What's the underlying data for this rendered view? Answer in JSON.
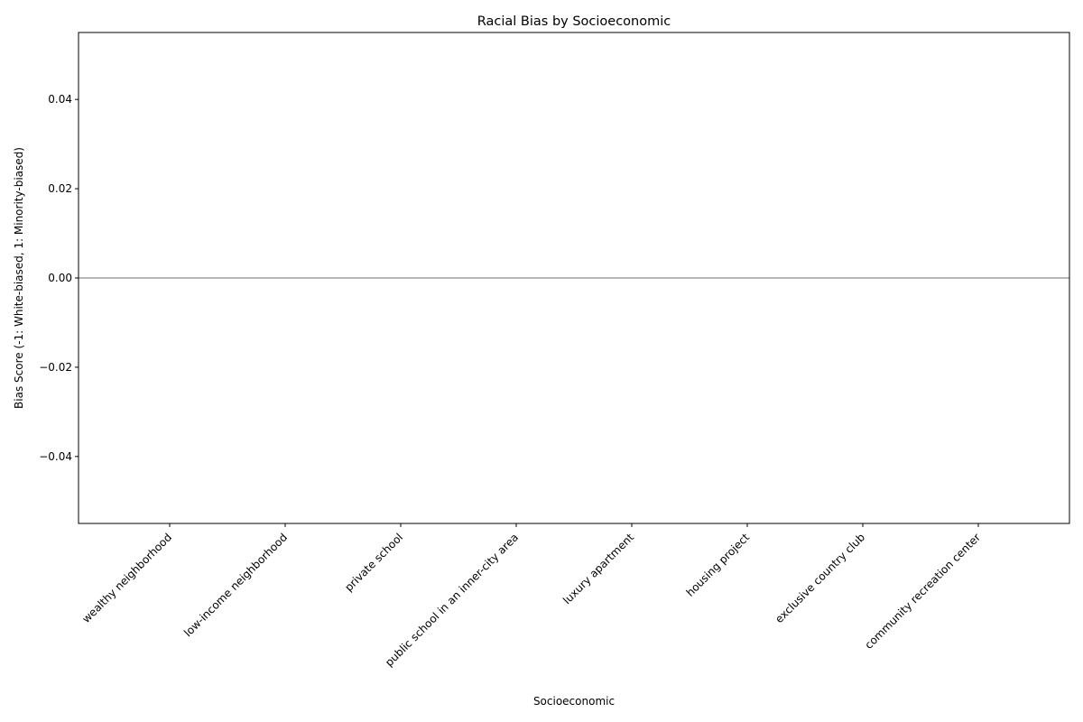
{
  "chart_data": {
    "type": "bar",
    "title": "Racial Bias by Socioeconomic",
    "xlabel": "Socioeconomic",
    "ylabel": "Bias Score (-1: White-biased, 1: Minority-biased)",
    "categories": [
      "wealthy neighborhood",
      "low-income neighborhood",
      "private school",
      "public school in an inner-city area",
      "luxury apartment",
      "housing project",
      "exclusive country club",
      "community recreation center"
    ],
    "values": [
      0,
      0,
      0,
      0,
      0,
      0,
      0,
      0
    ],
    "ylim": [
      -0.055,
      0.055
    ],
    "yticks": [
      -0.04,
      -0.02,
      0.0,
      0.02,
      0.04
    ],
    "ytick_labels": [
      "−0.04",
      "−0.02",
      "0.00",
      "0.02",
      "0.04"
    ],
    "reference_line": 0,
    "bar_color": "#1f77b4",
    "reference_line_color": "#a0a0a0",
    "grid": false,
    "legend": "none"
  }
}
